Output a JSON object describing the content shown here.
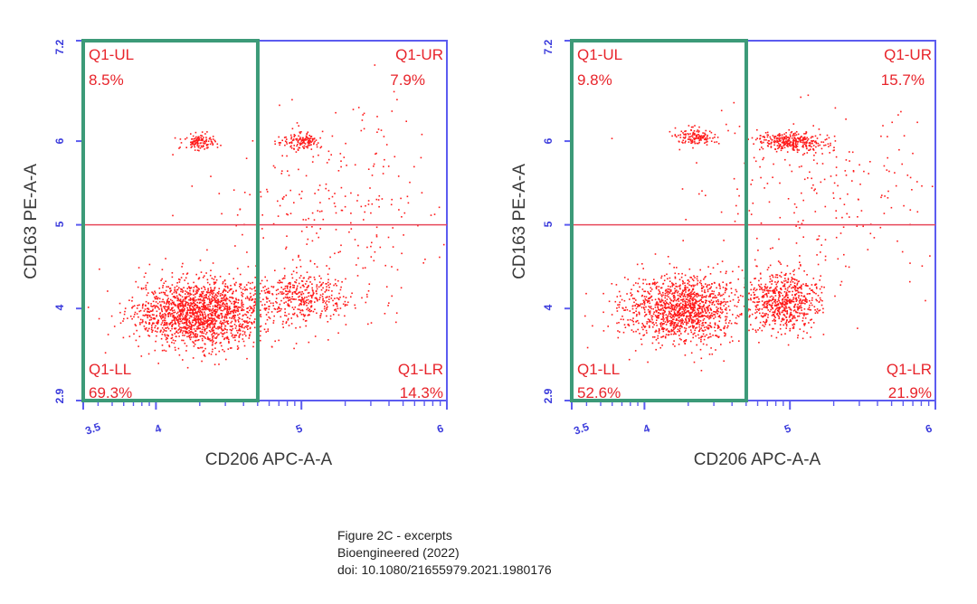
{
  "chart_data": [
    {
      "type": "scatter",
      "xlabel": "CD206 APC-A-A",
      "ylabel": "CD163 PE-A-A",
      "x_ticks": [
        "3.5",
        "4",
        "5",
        "6"
      ],
      "y_ticks": [
        "2.9",
        "4",
        "5",
        "6",
        "7.2"
      ],
      "xlim": [
        3.5,
        6
      ],
      "ylim": [
        2.9,
        7.2
      ],
      "quadrants": [
        {
          "name": "Q1-UL",
          "value": "8.5%"
        },
        {
          "name": "Q1-UR",
          "value": "7.9%"
        },
        {
          "name": "Q1-LL",
          "value": "69.3%"
        },
        {
          "name": "Q1-LR",
          "value": "14.3%"
        }
      ],
      "gates": {
        "x": 4.7,
        "y": 5.0
      },
      "clusters": [
        {
          "cx": 4.3,
          "cy": 3.95,
          "sx": 0.22,
          "sy": 0.2,
          "n": 1700
        },
        {
          "cx": 5.0,
          "cy": 4.15,
          "sx": 0.18,
          "sy": 0.15,
          "n": 420
        },
        {
          "cx": 4.3,
          "cy": 6.0,
          "sx": 0.06,
          "sy": 0.05,
          "n": 120
        },
        {
          "cx": 5.0,
          "cy": 6.0,
          "sx": 0.07,
          "sy": 0.05,
          "n": 130
        },
        {
          "cx": 5.2,
          "cy": 5.2,
          "sx": 0.45,
          "sy": 0.6,
          "n": 260
        }
      ]
    },
    {
      "type": "scatter",
      "xlabel": "CD206 APC-A-A",
      "ylabel": "CD163 PE-A-A",
      "x_ticks": [
        "3.5",
        "4",
        "5",
        "6"
      ],
      "y_ticks": [
        "2.9",
        "4",
        "5",
        "6",
        "7.2"
      ],
      "xlim": [
        3.5,
        6
      ],
      "ylim": [
        2.9,
        7.2
      ],
      "quadrants": [
        {
          "name": "Q1-UL",
          "value": "9.8%"
        },
        {
          "name": "Q1-UR",
          "value": "15.7%"
        },
        {
          "name": "Q1-LL",
          "value": "52.6%"
        },
        {
          "name": "Q1-LR",
          "value": "21.9%"
        }
      ],
      "gates": {
        "x": 4.7,
        "y": 5.0
      },
      "clusters": [
        {
          "cx": 4.25,
          "cy": 4.0,
          "sx": 0.2,
          "sy": 0.2,
          "n": 1300
        },
        {
          "cx": 4.95,
          "cy": 4.1,
          "sx": 0.12,
          "sy": 0.17,
          "n": 650
        },
        {
          "cx": 4.35,
          "cy": 6.05,
          "sx": 0.07,
          "sy": 0.05,
          "n": 140
        },
        {
          "cx": 5.0,
          "cy": 6.0,
          "sx": 0.12,
          "sy": 0.06,
          "n": 320
        },
        {
          "cx": 5.2,
          "cy": 5.3,
          "sx": 0.45,
          "sy": 0.55,
          "n": 230
        }
      ]
    }
  ],
  "caption": {
    "line1": "Figure 2C - excerpts",
    "line2": "Bioengineered (2022)",
    "line3": "doi: 10.1080/21655979.2021.1980176"
  },
  "colors": {
    "dots": "#ff1a1a",
    "frame": "#5c5cf0",
    "gate_box": "#3c9a78",
    "gate_line": "#e8485a"
  }
}
